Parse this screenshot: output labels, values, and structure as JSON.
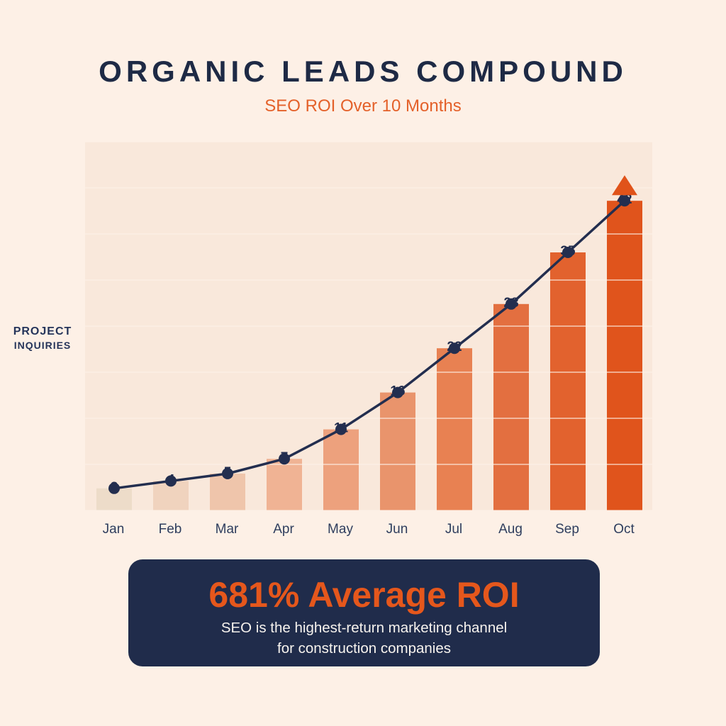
{
  "header": {
    "title": "ORGANIC LEADS COMPOUND",
    "subtitle": "SEO ROI Over 10 Months"
  },
  "chart": {
    "y_axis": {
      "line1": "PROJECT",
      "line2": "INQUIRIES"
    }
  },
  "chart_data": {
    "type": "bar",
    "overlay": "line",
    "title": "ORGANIC LEADS COMPOUND",
    "subtitle": "SEO ROI Over 10 Months",
    "categories": [
      "Jan",
      "Feb",
      "Mar",
      "Apr",
      "May",
      "Jun",
      "Jul",
      "Aug",
      "Sep",
      "Oct"
    ],
    "values": [
      3,
      4,
      5,
      7,
      11,
      16,
      22,
      28,
      35,
      42
    ],
    "xlabel": "",
    "ylabel": "PROJECT INQUIRIES",
    "ylim": [
      0,
      50
    ],
    "grid": true,
    "gridline_count": 9,
    "legend": false,
    "data_labels_shown": true,
    "annotation": "orange up-arrow above final (Oct) bar",
    "bar_colors": [
      "#eddcc9",
      "#f0d3be",
      "#efc5ab",
      "#f0b394",
      "#eda17d",
      "#e9946c",
      "#e88152",
      "#e36f40",
      "#e2622e",
      "#e0541c"
    ],
    "line_color": "#232e4f",
    "dot_color": "#232e4f",
    "value_label_color": "#232e4f",
    "arrow_color": "#e0531a"
  },
  "callout": {
    "headline": "681% Average ROI",
    "line1": "SEO is the highest-return marketing channel",
    "line2": "for construction companies"
  },
  "colors": {
    "page_bg": "#fdf0e6",
    "plot_bg": "#f9e8db",
    "gridline": "#fdf2e8",
    "navy": "#1e2a45",
    "accent_orange": "#e5571c",
    "callout_bg": "#202c4b"
  }
}
